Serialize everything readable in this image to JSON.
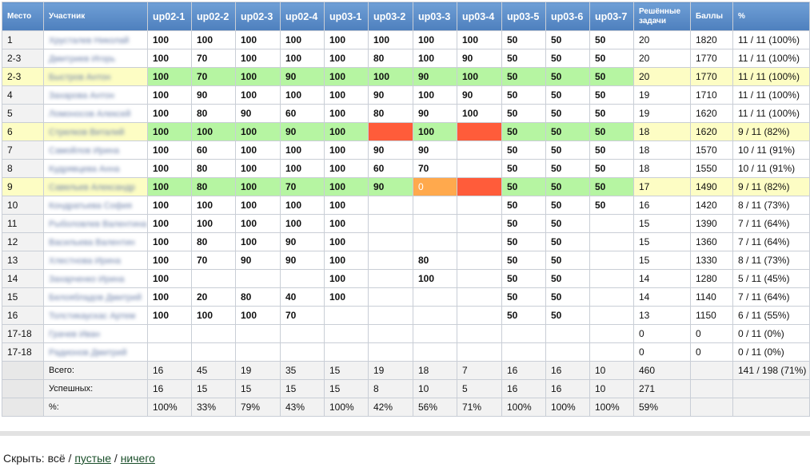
{
  "headers": {
    "place": "Место",
    "participant": "Участник",
    "problems": [
      "up02-1",
      "up02-2",
      "up02-3",
      "up02-4",
      "up03-1",
      "up03-2",
      "up03-3",
      "up03-4",
      "up03-5",
      "up03-6",
      "up03-7"
    ],
    "solved": "Решённые задачи",
    "points": "Баллы",
    "percent": "%"
  },
  "colors": {
    "header": "#5a8ac8",
    "accepted": "#b6f5a2",
    "failed": "#ff5c3a",
    "partial": "#ffa94d",
    "highlight_row": "#fdfdc4"
  },
  "rows": [
    {
      "place": "1",
      "name": "Хрусталев Николай",
      "hl": false,
      "scores": [
        "100",
        "100",
        "100",
        "100",
        "100",
        "100",
        "100",
        "100",
        "50",
        "50",
        "50"
      ],
      "status": [
        "",
        "",
        "",
        "",
        "",
        "",
        "",
        "",
        "",
        "",
        ""
      ],
      "solved": "20",
      "points": "1820",
      "pct": "11 / 11 (100%)"
    },
    {
      "place": "2-3",
      "name": "Дмитриев Игорь",
      "hl": false,
      "scores": [
        "100",
        "70",
        "100",
        "100",
        "100",
        "80",
        "100",
        "90",
        "50",
        "50",
        "50"
      ],
      "status": [
        "",
        "",
        "",
        "",
        "",
        "",
        "",
        "",
        "",
        "",
        ""
      ],
      "solved": "20",
      "points": "1770",
      "pct": "11 / 11 (100%)"
    },
    {
      "place": "2-3",
      "name": "Быстров Антон",
      "hl": true,
      "scores": [
        "100",
        "70",
        "100",
        "90",
        "100",
        "100",
        "90",
        "100",
        "50",
        "50",
        "50"
      ],
      "status": [
        "ok",
        "ok",
        "ok",
        "ok",
        "ok",
        "ok",
        "ok",
        "ok",
        "ok",
        "ok",
        "ok"
      ],
      "solved": "20",
      "points": "1770",
      "pct": "11 / 11 (100%)"
    },
    {
      "place": "4",
      "name": "Захарова Антон",
      "hl": false,
      "scores": [
        "100",
        "90",
        "100",
        "100",
        "100",
        "90",
        "100",
        "90",
        "50",
        "50",
        "50"
      ],
      "status": [
        "",
        "",
        "",
        "",
        "",
        "",
        "",
        "",
        "",
        "",
        ""
      ],
      "solved": "19",
      "points": "1710",
      "pct": "11 / 11 (100%)"
    },
    {
      "place": "5",
      "name": "Ломоносов Алексей",
      "hl": false,
      "scores": [
        "100",
        "80",
        "90",
        "60",
        "100",
        "80",
        "90",
        "100",
        "50",
        "50",
        "50"
      ],
      "status": [
        "",
        "",
        "",
        "",
        "",
        "",
        "",
        "",
        "",
        "",
        ""
      ],
      "solved": "19",
      "points": "1620",
      "pct": "11 / 11 (100%)"
    },
    {
      "place": "6",
      "name": "Стрелков Виталий",
      "hl": true,
      "scores": [
        "100",
        "100",
        "100",
        "90",
        "100",
        "",
        "100",
        "",
        "50",
        "50",
        "50"
      ],
      "status": [
        "ok",
        "ok",
        "ok",
        "ok",
        "ok",
        "red",
        "ok",
        "red",
        "ok",
        "ok",
        "ok"
      ],
      "solved": "18",
      "points": "1620",
      "pct": "9 / 11 (82%)"
    },
    {
      "place": "7",
      "name": "Самойлов Ирина",
      "hl": false,
      "scores": [
        "100",
        "60",
        "100",
        "100",
        "100",
        "90",
        "90",
        "",
        "50",
        "50",
        "50"
      ],
      "status": [
        "",
        "",
        "",
        "",
        "",
        "",
        "",
        "",
        "",
        "",
        ""
      ],
      "solved": "18",
      "points": "1570",
      "pct": "10 / 11 (91%)"
    },
    {
      "place": "8",
      "name": "Кудрявцева Анна",
      "hl": false,
      "scores": [
        "100",
        "80",
        "100",
        "100",
        "100",
        "60",
        "70",
        "",
        "50",
        "50",
        "50"
      ],
      "status": [
        "",
        "",
        "",
        "",
        "",
        "",
        "",
        "",
        "",
        "",
        ""
      ],
      "solved": "18",
      "points": "1550",
      "pct": "10 / 11 (91%)"
    },
    {
      "place": "9",
      "name": "Савельев Александр",
      "hl": true,
      "scores": [
        "100",
        "80",
        "100",
        "70",
        "100",
        "90",
        "0",
        "",
        "50",
        "50",
        "50"
      ],
      "status": [
        "ok",
        "ok",
        "ok",
        "ok",
        "ok",
        "ok",
        "orange",
        "red",
        "ok",
        "ok",
        "ok"
      ],
      "solved": "17",
      "points": "1490",
      "pct": "9 / 11 (82%)"
    },
    {
      "place": "10",
      "name": "Кондратьева София",
      "hl": false,
      "scores": [
        "100",
        "100",
        "100",
        "100",
        "100",
        "",
        "",
        "",
        "50",
        "50",
        "50"
      ],
      "status": [
        "",
        "",
        "",
        "",
        "",
        "",
        "",
        "",
        "",
        "",
        ""
      ],
      "solved": "16",
      "points": "1420",
      "pct": "8 / 11 (73%)"
    },
    {
      "place": "11",
      "name": "Рыболовлев Валентина",
      "hl": false,
      "scores": [
        "100",
        "100",
        "100",
        "100",
        "100",
        "",
        "",
        "",
        "50",
        "50",
        ""
      ],
      "status": [
        "",
        "",
        "",
        "",
        "",
        "",
        "",
        "",
        "",
        "",
        ""
      ],
      "solved": "15",
      "points": "1390",
      "pct": "7 / 11 (64%)"
    },
    {
      "place": "12",
      "name": "Васильева Валентин",
      "hl": false,
      "scores": [
        "100",
        "80",
        "100",
        "90",
        "100",
        "",
        "",
        "",
        "50",
        "50",
        ""
      ],
      "status": [
        "",
        "",
        "",
        "",
        "",
        "",
        "",
        "",
        "",
        "",
        ""
      ],
      "solved": "15",
      "points": "1360",
      "pct": "7 / 11 (64%)"
    },
    {
      "place": "13",
      "name": "Хлестнова Ирина",
      "hl": false,
      "scores": [
        "100",
        "70",
        "90",
        "90",
        "100",
        "",
        "80",
        "",
        "50",
        "50",
        ""
      ],
      "status": [
        "",
        "",
        "",
        "",
        "",
        "",
        "",
        "",
        "",
        "",
        ""
      ],
      "solved": "15",
      "points": "1330",
      "pct": "8 / 11 (73%)"
    },
    {
      "place": "14",
      "name": "Захарченко Ирина",
      "hl": false,
      "scores": [
        "100",
        "",
        "",
        "",
        "100",
        "",
        "100",
        "",
        "50",
        "50",
        ""
      ],
      "status": [
        "",
        "",
        "",
        "",
        "",
        "",
        "",
        "",
        "",
        "",
        ""
      ],
      "solved": "14",
      "points": "1280",
      "pct": "5 / 11 (45%)"
    },
    {
      "place": "15",
      "name": "Белоябладов Дмитрий",
      "hl": false,
      "scores": [
        "100",
        "20",
        "80",
        "40",
        "100",
        "",
        "",
        "",
        "50",
        "50",
        ""
      ],
      "status": [
        "",
        "",
        "",
        "",
        "",
        "",
        "",
        "",
        "",
        "",
        ""
      ],
      "solved": "14",
      "points": "1140",
      "pct": "7 / 11 (64%)"
    },
    {
      "place": "16",
      "name": "Толстикаускас Артем",
      "hl": false,
      "scores": [
        "100",
        "100",
        "100",
        "70",
        "",
        "",
        "",
        "",
        "50",
        "50",
        ""
      ],
      "status": [
        "",
        "",
        "",
        "",
        "",
        "",
        "",
        "",
        "",
        "",
        ""
      ],
      "solved": "13",
      "points": "1150",
      "pct": "6 / 11 (55%)"
    },
    {
      "place": "17-18",
      "name": "Грачев Иван",
      "hl": false,
      "scores": [
        "",
        "",
        "",
        "",
        "",
        "",
        "",
        "",
        "",
        "",
        ""
      ],
      "status": [
        "",
        "",
        "",
        "",
        "",
        "",
        "",
        "",
        "",
        "",
        ""
      ],
      "solved": "0",
      "points": "0",
      "pct": "0 / 11 (0%)"
    },
    {
      "place": "17-18",
      "name": "Радионов Дмитрий",
      "hl": false,
      "scores": [
        "",
        "",
        "",
        "",
        "",
        "",
        "",
        "",
        "",
        "",
        ""
      ],
      "status": [
        "",
        "",
        "",
        "",
        "",
        "",
        "",
        "",
        "",
        "",
        ""
      ],
      "solved": "0",
      "points": "0",
      "pct": "0 / 11 (0%)"
    }
  ],
  "footer": [
    {
      "label": "Всего:",
      "values": [
        "16",
        "45",
        "19",
        "35",
        "15",
        "19",
        "18",
        "7",
        "16",
        "16",
        "10"
      ],
      "solved": "460",
      "points": "",
      "pct": "141 / 198 (71%)"
    },
    {
      "label": "Успешных:",
      "values": [
        "16",
        "15",
        "15",
        "15",
        "15",
        "8",
        "10",
        "5",
        "16",
        "16",
        "10"
      ],
      "solved": "271",
      "points": "",
      "pct": ""
    },
    {
      "label": "%:",
      "values": [
        "100%",
        "33%",
        "79%",
        "43%",
        "100%",
        "42%",
        "56%",
        "71%",
        "100%",
        "100%",
        "100%"
      ],
      "solved": "59%",
      "points": "",
      "pct": ""
    }
  ],
  "hide": {
    "prefix": "Скрыть:",
    "all": "всё",
    "sep1": "/",
    "empty": "пустые",
    "sep2": "/",
    "nothing": "ничего"
  }
}
